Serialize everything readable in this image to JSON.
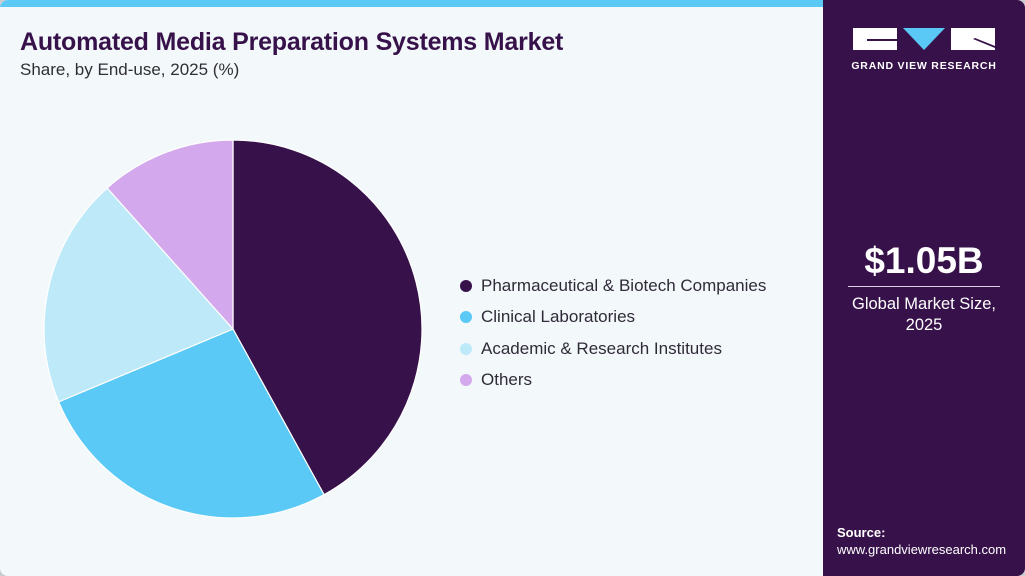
{
  "header": {
    "title": "Automated Media Preparation Systems Market",
    "subtitle": "Share, by End-use, 2025 (%)"
  },
  "legend": {
    "items": [
      {
        "label": "Pharmaceutical & Biotech Companies",
        "color": "#37124a"
      },
      {
        "label": "Clinical Laboratories",
        "color": "#5bc9f5"
      },
      {
        "label": "Academic & Research Institutes",
        "color": "#bde9f9"
      },
      {
        "label": "Others",
        "color": "#d3a8ec"
      }
    ]
  },
  "sidebar": {
    "brand": "GRAND VIEW RESEARCH",
    "market_value": "$1.05B",
    "market_label_line1": "Global Market Size,",
    "market_label_line2": "2025",
    "source_label": "Source:",
    "source_url": "www.grandviewresearch.com"
  },
  "colors": {
    "accent_dark": "#37124a",
    "accent_blue": "#5bc9f5",
    "background": "#f3f8fb"
  },
  "chart_data": {
    "type": "pie",
    "title": "Automated Media Preparation Systems Market",
    "subtitle": "Share, by End-use, 2025 (%)",
    "categories": [
      "Pharmaceutical & Biotech Companies",
      "Clinical Laboratories",
      "Academic & Research Institutes",
      "Others"
    ],
    "values": [
      42.0,
      26.7,
      19.7,
      11.6
    ],
    "colors": [
      "#37124a",
      "#5bc9f5",
      "#bde9f9",
      "#d3a8ec"
    ],
    "start_angle": "12 o'clock, clockwise",
    "legend_position": "right",
    "center": [
      233,
      329
    ],
    "radius": 189
  }
}
